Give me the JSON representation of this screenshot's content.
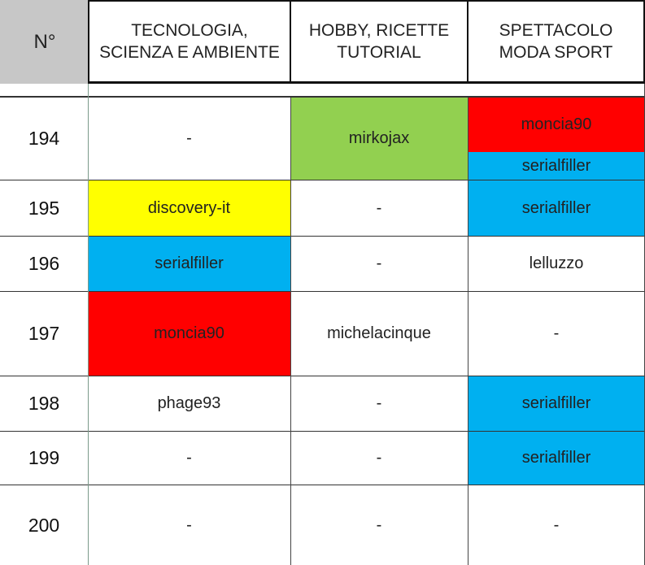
{
  "header": {
    "number": "N°",
    "columns": [
      "TECNOLOGIA,\nSCIENZA E AMBIENTE",
      "HOBBY, RICETTE\nTUTORIAL",
      "SPETTACOLO\nMODA SPORT"
    ]
  },
  "colors": {
    "header_number_bg": "#c7c7c7",
    "green": "#92d050",
    "red": "#ff0000",
    "blue": "#00b0f0",
    "yellow": "#ffff00"
  },
  "rows": [
    {
      "n": "194",
      "tech": "-",
      "hobby": "mirkojax",
      "show_top": "moncia90",
      "show_bottom": "serialfiller"
    },
    {
      "n": "195",
      "tech": "discovery-it",
      "hobby": "-",
      "show": "serialfiller"
    },
    {
      "n": "196",
      "tech": "serialfiller",
      "hobby": "-",
      "show": "lelluzzo"
    },
    {
      "n": "197",
      "tech": "moncia90",
      "hobby": "michelacinque",
      "show": "-"
    },
    {
      "n": "198",
      "tech": "phage93",
      "hobby": "-",
      "show": "serialfiller"
    },
    {
      "n": "199",
      "tech": "-",
      "hobby": "-",
      "show": "serialfiller"
    },
    {
      "n": "200",
      "tech": "-",
      "hobby": "-",
      "show": "-"
    }
  ]
}
